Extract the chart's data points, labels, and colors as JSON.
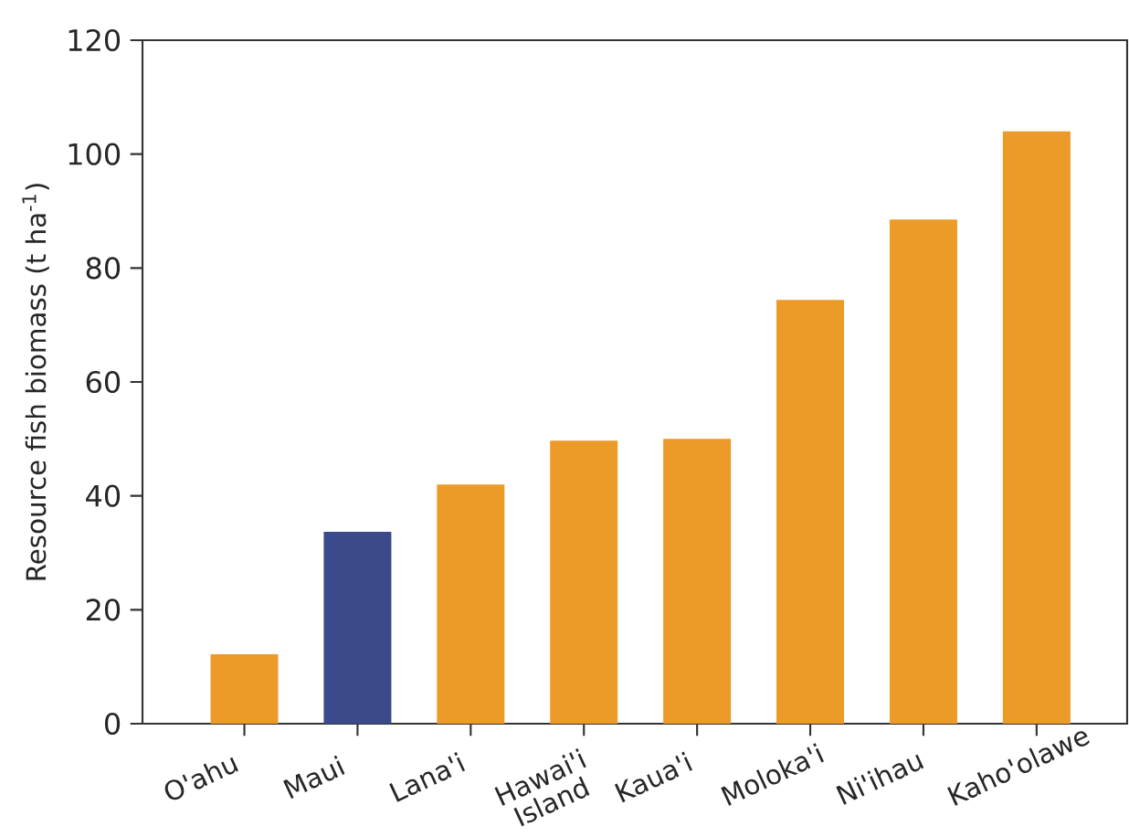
{
  "chart_data": {
    "type": "bar",
    "ylabel": "Resource fish biomass (t ha$^{-1}$)",
    "categories": [
      "O'ahu",
      "Maui",
      "Lana'i",
      "Hawai'i Island",
      "Kaua'i",
      "Moloka'i",
      "Ni'ihau",
      "Kaho'olawe"
    ],
    "values": [
      12.2,
      33.7,
      42.0,
      49.7,
      50.0,
      74.4,
      88.5,
      104
    ],
    "colors": [
      "#ec9a28",
      "#3a4a8a",
      "#ec9a28",
      "#ec9a28",
      "#ec9a28",
      "#ec9a28",
      "#ec9a28",
      "#ec9a28"
    ],
    "ylim": [
      0,
      120
    ],
    "yticks": [
      0,
      20,
      40,
      60,
      80,
      100,
      120
    ],
    "grid": false
  }
}
